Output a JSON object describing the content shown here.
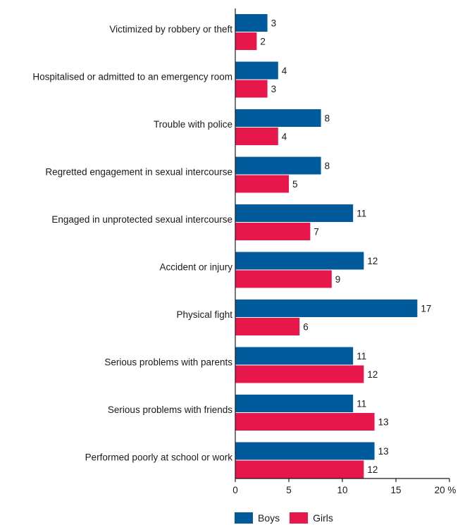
{
  "chart_data": {
    "type": "bar",
    "orientation": "horizontal",
    "categories": [
      "Victimized by robbery or theft",
      "Hospitalised or admitted to an emergency room",
      "Trouble with police",
      "Regretted engagement in sexual intercourse",
      "Engaged in unprotected sexual intercourse",
      "Accident or injury",
      "Physical fight",
      "Serious problems with parents",
      "Serious problems with friends",
      "Performed poorly at school or work"
    ],
    "series": [
      {
        "name": "Boys",
        "color": "#005a9c",
        "values": [
          3,
          4,
          8,
          8,
          11,
          12,
          17,
          11,
          11,
          13
        ]
      },
      {
        "name": "Girls",
        "color": "#e8174b",
        "values": [
          2,
          3,
          4,
          5,
          7,
          9,
          6,
          12,
          13,
          12
        ]
      }
    ],
    "xlim": [
      0,
      20
    ],
    "xticks": [
      0,
      5,
      10,
      15,
      20
    ],
    "xtick_labels": [
      "0",
      "5",
      "10",
      "15",
      "20 %"
    ],
    "title": "",
    "xlabel": "",
    "ylabel": "",
    "grid": false,
    "legend_position": "bottom"
  }
}
